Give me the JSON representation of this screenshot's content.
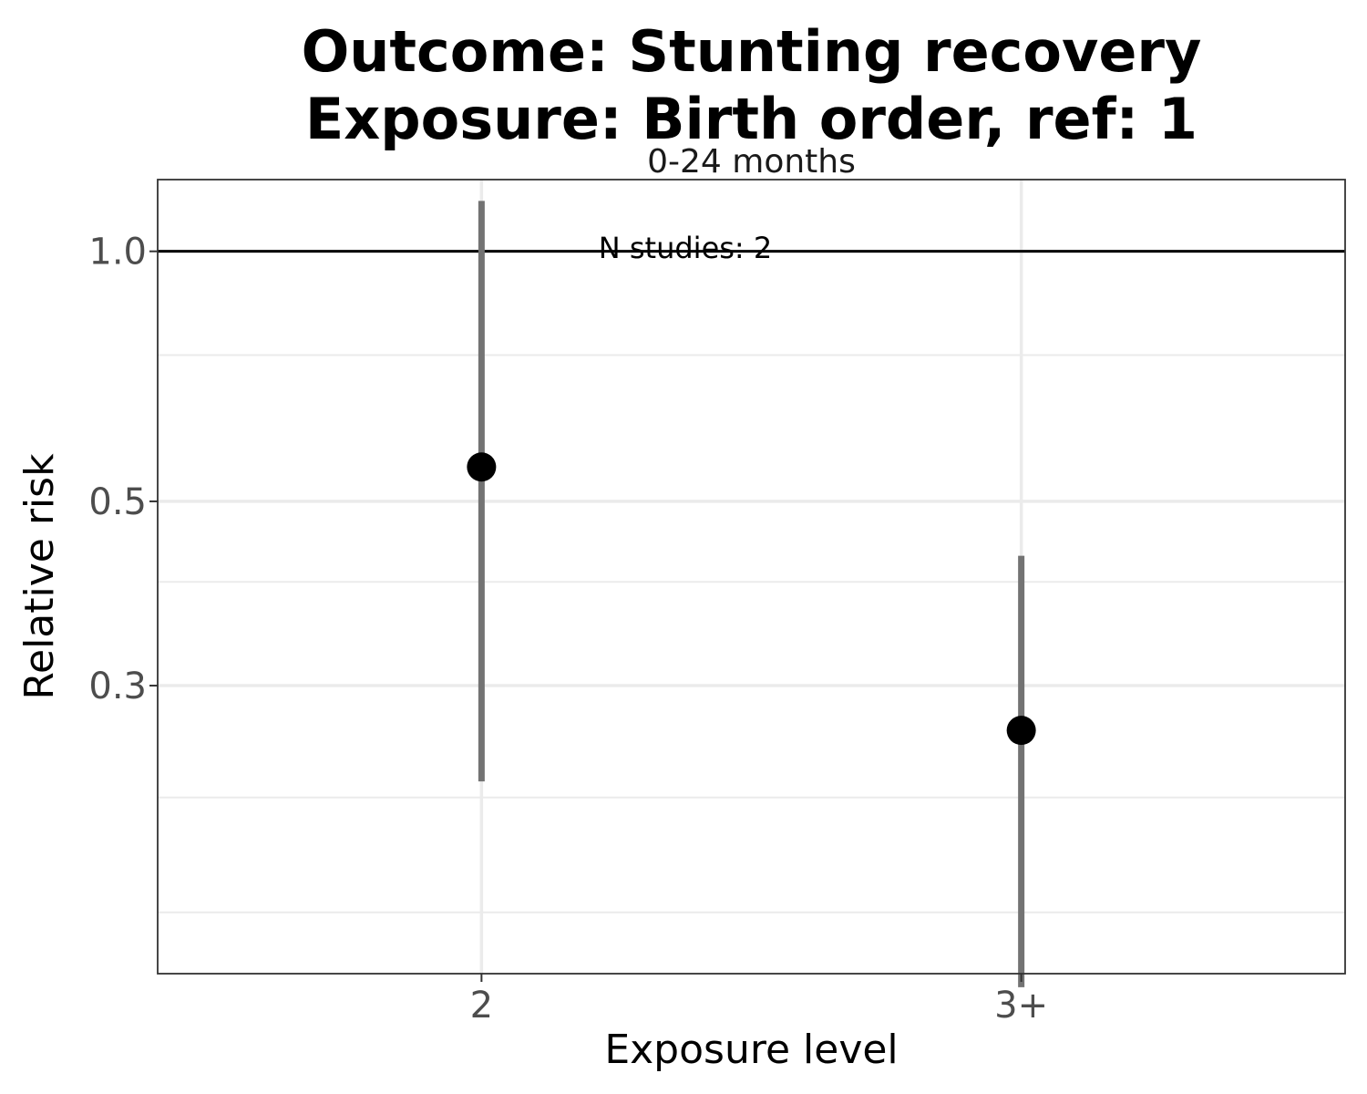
{
  "chart_data": {
    "type": "scatter",
    "title_lines": [
      "Outcome: Stunting recovery",
      "Exposure: Birth order, ref: 1"
    ],
    "facet_label": "0-24 months",
    "xlabel": "Exposure level",
    "ylabel": "Relative risk",
    "y_scale": "log",
    "ylim": [
      0.135,
      1.22
    ],
    "y_major_ticks": [
      0.3,
      0.5,
      1.0
    ],
    "y_tick_labels": [
      "0.3",
      "0.5",
      "1.0"
    ],
    "y_minor_gridlines": [
      0.16,
      0.22,
      0.4,
      0.75
    ],
    "reference_line": 1.0,
    "categories": [
      "2",
      "3+"
    ],
    "points": [
      {
        "category": "2",
        "estimate": 0.55,
        "lower": 0.23,
        "upper": 1.15
      },
      {
        "category": "3+",
        "estimate": 0.265,
        "lower": 0.13,
        "upper": 0.43
      }
    ],
    "annotation": "N studies: 2",
    "grid": true,
    "colors": {
      "point": "#000000",
      "ci": "#737373",
      "refline": "#000000",
      "grid": "#ebebeb",
      "panel_border": "#333333"
    }
  }
}
